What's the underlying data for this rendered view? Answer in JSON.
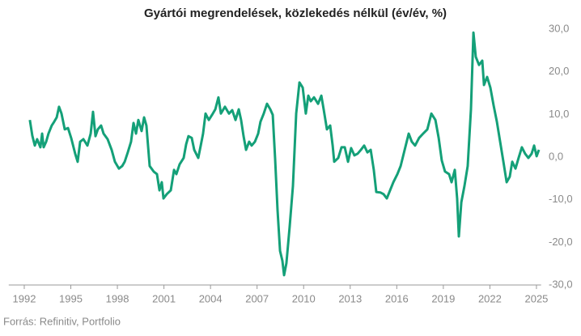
{
  "chart_data": {
    "type": "line",
    "title": "Gyártói megrendelések, közlekedés nélkül (év/év, %)",
    "source": "Forrás: Refinitiv, Portfolio",
    "xlim": [
      1991,
      2025.3
    ],
    "xticks": [
      1992,
      1995,
      1998,
      2001,
      2004,
      2007,
      2010,
      2013,
      2016,
      2019,
      2022,
      2025
    ],
    "ylim": [
      -30,
      30
    ],
    "yticks": [
      {
        "value": 30,
        "label": "30,0"
      },
      {
        "value": 20,
        "label": "20,0"
      },
      {
        "value": 10,
        "label": "10,0"
      },
      {
        "value": 0,
        "label": "0,0"
      },
      {
        "value": -10,
        "label": "-10,0"
      },
      {
        "value": -20,
        "label": "-20,0"
      },
      {
        "value": -30,
        "label": "-30,0"
      }
    ],
    "grid": false,
    "x": [
      1992.36,
      1992.52,
      1992.68,
      1992.83,
      1993.04,
      1993.15,
      1993.25,
      1993.41,
      1993.56,
      1993.77,
      1993.93,
      1994.09,
      1994.24,
      1994.4,
      1994.61,
      1994.82,
      1995.02,
      1995.28,
      1995.44,
      1995.6,
      1995.81,
      1996.07,
      1996.28,
      1996.43,
      1996.59,
      1996.74,
      1996.95,
      1997.11,
      1997.37,
      1997.63,
      1997.84,
      1998.1,
      1998.31,
      1998.47,
      1998.67,
      1998.88,
      1999.04,
      1999.2,
      1999.35,
      1999.56,
      1999.72,
      1999.87,
      2000.08,
      2000.34,
      2000.55,
      2000.71,
      2000.86,
      2000.97,
      2001.18,
      2001.44,
      2001.65,
      2001.8,
      2002.01,
      2002.27,
      2002.43,
      2002.58,
      2002.79,
      2002.95,
      2003.21,
      2003.37,
      2003.52,
      2003.68,
      2003.89,
      2004.1,
      2004.31,
      2004.51,
      2004.67,
      2004.93,
      2005.19,
      2005.4,
      2005.61,
      2005.82,
      2005.97,
      2006.13,
      2006.29,
      2006.49,
      2006.65,
      2006.86,
      2007.07,
      2007.22,
      2007.43,
      2007.64,
      2007.85,
      2008.01,
      2008.16,
      2008.32,
      2008.48,
      2008.63,
      2008.74,
      2008.89,
      2009.1,
      2009.31,
      2009.52,
      2009.73,
      2009.94,
      2010.14,
      2010.3,
      2010.46,
      2010.67,
      2010.93,
      2011.14,
      2011.29,
      2011.5,
      2011.71,
      2011.87,
      2011.97,
      2012.23,
      2012.44,
      2012.65,
      2012.86,
      2013.06,
      2013.27,
      2013.48,
      2013.69,
      2013.9,
      2014.11,
      2014.32,
      2014.52,
      2014.68,
      2014.94,
      2015.15,
      2015.36,
      2015.57,
      2015.78,
      2016.04,
      2016.25,
      2016.51,
      2016.77,
      2016.97,
      2017.18,
      2017.44,
      2017.7,
      2017.97,
      2018.23,
      2018.49,
      2018.7,
      2018.9,
      2019.11,
      2019.37,
      2019.53,
      2019.74,
      2019.89,
      2020.0,
      2020.16,
      2020.36,
      2020.57,
      2020.78,
      2020.94,
      2021.09,
      2021.3,
      2021.51,
      2021.62,
      2021.82,
      2022.03,
      2022.24,
      2022.45,
      2022.66,
      2022.87,
      2023.08,
      2023.28,
      2023.44,
      2023.65,
      2023.85,
      2024.06,
      2024.27,
      2024.48,
      2024.69,
      2024.85,
      2025.01,
      2025.16
    ],
    "series": [
      {
        "name": "Gyártói megrendelések",
        "color": "#14a078",
        "values": [
          8.7,
          5,
          2.7,
          4.2,
          2.3,
          5.5,
          2.3,
          3.6,
          5.5,
          7.4,
          8.3,
          9.3,
          11.8,
          10.2,
          6.5,
          6.8,
          4.5,
          0.8,
          -1.1,
          3.6,
          4.2,
          2.7,
          5.5,
          10.6,
          4.9,
          6.5,
          7.4,
          5.5,
          4.2,
          1.7,
          -1.1,
          -2.7,
          -2.1,
          -1.1,
          1.1,
          3.6,
          8,
          5.5,
          8.7,
          6.1,
          9.3,
          7.4,
          -2.1,
          -3.4,
          -4,
          -7.8,
          -5.9,
          -9.7,
          -8.7,
          -7.8,
          -3,
          -4,
          -1.7,
          -0.2,
          3,
          4.9,
          4.5,
          1.7,
          -0.2,
          2.7,
          5.5,
          10.2,
          8.7,
          9.9,
          11.2,
          14,
          10.2,
          11.8,
          10.2,
          11,
          8.7,
          11.2,
          8.7,
          4.9,
          1.7,
          3.6,
          2.7,
          3.6,
          5.5,
          8.3,
          10.2,
          12.5,
          11.2,
          9.9,
          -0.2,
          -12.5,
          -22,
          -24.3,
          -27.7,
          -24.9,
          -16.3,
          -6.8,
          10.2,
          17.5,
          16.3,
          10.2,
          14.4,
          13.1,
          14,
          12.5,
          14.4,
          11.2,
          6.5,
          7.4,
          2.7,
          -1.1,
          -0.2,
          2.3,
          2.3,
          -1.1,
          2.1,
          0.4,
          0.8,
          1.7,
          2.7,
          1.1,
          1.7,
          -3,
          -8.2,
          -8.3,
          -8.7,
          -9.7,
          -7.8,
          -5.9,
          -4,
          -2.1,
          1.7,
          5.5,
          3.6,
          2.7,
          4.5,
          5.5,
          6.5,
          10.2,
          8.7,
          4.5,
          -0.8,
          -3.4,
          -4,
          -5.9,
          -3,
          -9.7,
          -18.6,
          -10.6,
          -6.8,
          -2.1,
          11.2,
          29.2,
          23.5,
          21.6,
          22.6,
          16.9,
          18.8,
          16.3,
          12.1,
          8.3,
          3.6,
          -1.1,
          -5.9,
          -4.6,
          -1.1,
          -2.7,
          -0.2,
          2.3,
          0.8,
          -0.2,
          0.8,
          2.7,
          0.2,
          1.7
        ]
      }
    ]
  }
}
